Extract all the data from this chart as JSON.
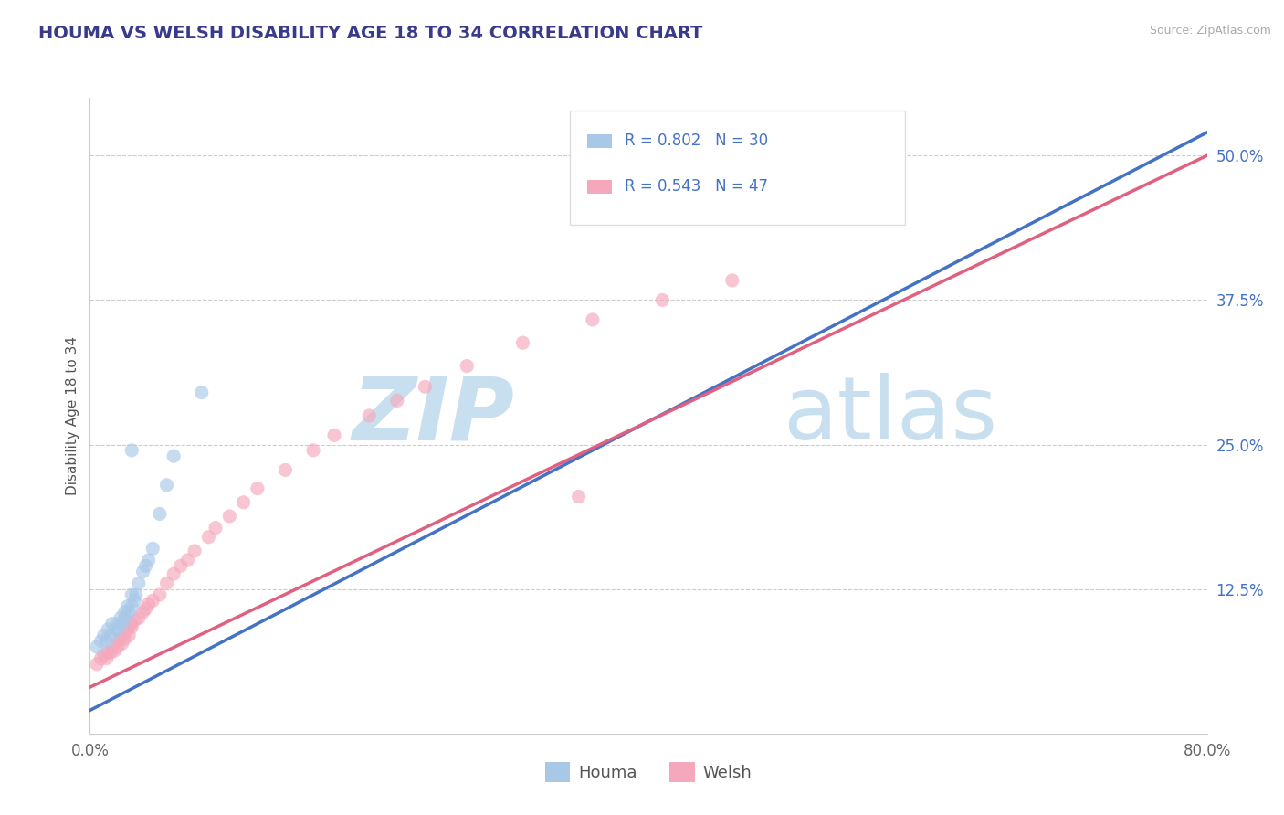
{
  "title": "HOUMA VS WELSH DISABILITY AGE 18 TO 34 CORRELATION CHART",
  "source_text": "Source: ZipAtlas.com",
  "ylabel": "Disability Age 18 to 34",
  "xlim": [
    0.0,
    0.8
  ],
  "ylim": [
    0.0,
    0.55
  ],
  "xtick_positions": [
    0.0,
    0.8
  ],
  "xtick_labels": [
    "0.0%",
    "80.0%"
  ],
  "ytick_labels": [
    "12.5%",
    "25.0%",
    "37.5%",
    "50.0%"
  ],
  "ytick_positions": [
    0.125,
    0.25,
    0.375,
    0.5
  ],
  "grid_color": "#cccccc",
  "title_color": "#3a3a8c",
  "title_fontsize": 14,
  "watermark_zip": "ZIP",
  "watermark_atlas": "atlas",
  "watermark_color": "#c8dff0",
  "legend_r1": "R = 0.802",
  "legend_n1": "N = 30",
  "legend_r2": "R = 0.543",
  "legend_n2": "N = 47",
  "legend_color": "#4472c4",
  "houma_color": "#a8c8e8",
  "welsh_color": "#f5a8bc",
  "line_houma_color": "#4472c4",
  "line_welsh_color": "#e06080",
  "houma_scatter_x": [
    0.005,
    0.008,
    0.01,
    0.012,
    0.013,
    0.015,
    0.016,
    0.018,
    0.02,
    0.02,
    0.022,
    0.023,
    0.025,
    0.025,
    0.027,
    0.028,
    0.03,
    0.03,
    0.032,
    0.033,
    0.035,
    0.038,
    0.04,
    0.042,
    0.045,
    0.05,
    0.055,
    0.06,
    0.08,
    0.03
  ],
  "houma_scatter_y": [
    0.075,
    0.08,
    0.085,
    0.08,
    0.09,
    0.085,
    0.095,
    0.09,
    0.09,
    0.095,
    0.1,
    0.095,
    0.1,
    0.105,
    0.11,
    0.105,
    0.11,
    0.12,
    0.115,
    0.12,
    0.13,
    0.14,
    0.145,
    0.15,
    0.16,
    0.19,
    0.215,
    0.24,
    0.295,
    0.245
  ],
  "welsh_scatter_x": [
    0.005,
    0.008,
    0.01,
    0.012,
    0.013,
    0.015,
    0.016,
    0.018,
    0.02,
    0.02,
    0.022,
    0.023,
    0.025,
    0.025,
    0.027,
    0.028,
    0.03,
    0.03,
    0.032,
    0.035,
    0.038,
    0.04,
    0.042,
    0.045,
    0.05,
    0.055,
    0.06,
    0.065,
    0.07,
    0.075,
    0.085,
    0.09,
    0.1,
    0.11,
    0.12,
    0.14,
    0.16,
    0.175,
    0.2,
    0.22,
    0.24,
    0.27,
    0.31,
    0.36,
    0.41,
    0.46,
    0.35
  ],
  "welsh_scatter_y": [
    0.06,
    0.065,
    0.068,
    0.065,
    0.07,
    0.07,
    0.075,
    0.072,
    0.075,
    0.08,
    0.082,
    0.078,
    0.082,
    0.088,
    0.09,
    0.085,
    0.092,
    0.095,
    0.098,
    0.1,
    0.105,
    0.108,
    0.112,
    0.115,
    0.12,
    0.13,
    0.138,
    0.145,
    0.15,
    0.158,
    0.17,
    0.178,
    0.188,
    0.2,
    0.212,
    0.228,
    0.245,
    0.258,
    0.275,
    0.288,
    0.3,
    0.318,
    0.338,
    0.358,
    0.375,
    0.392,
    0.205
  ],
  "bg_color": "#ffffff",
  "scatter_size": 120,
  "scatter_alpha": 0.65,
  "houma_line_x": [
    0.0,
    0.8
  ],
  "houma_line_y_start": 0.02,
  "houma_line_y_end": 0.52,
  "welsh_line_x": [
    0.0,
    0.8
  ],
  "welsh_line_y_start": 0.04,
  "welsh_line_y_end": 0.5
}
